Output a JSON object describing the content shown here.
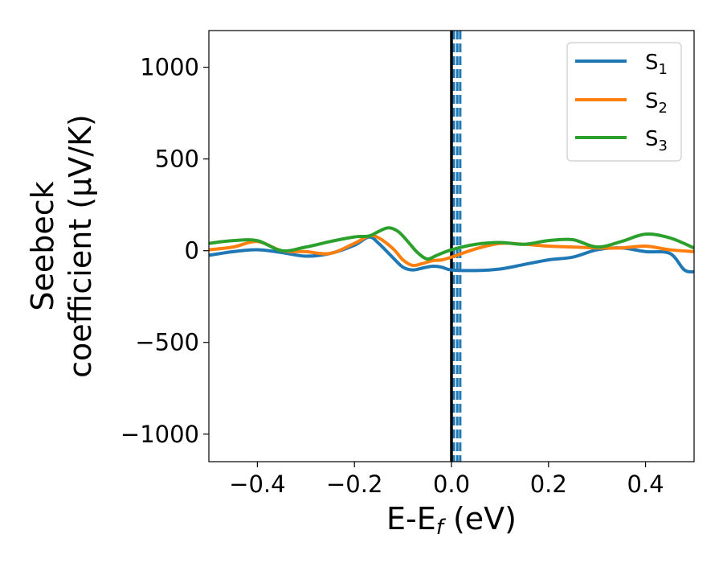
{
  "chart_data": {
    "type": "line",
    "xlabel_main": "E-E",
    "xlabel_sub": "f",
    "xlabel_unit": " (eV)",
    "ylabel_line1": "Seebeck",
    "ylabel_line2": "coefficient  (μV/K)",
    "xlim": [
      -0.5,
      0.5
    ],
    "ylim": [
      -1150,
      1200
    ],
    "xticks": [
      -0.4,
      -0.2,
      0.0,
      0.2,
      0.4
    ],
    "xtick_labels": [
      "−0.4",
      "−0.2",
      "0.0",
      "0.2",
      "0.4"
    ],
    "yticks": [
      -1000,
      -500,
      0,
      500,
      1000
    ],
    "ytick_labels": [
      "−1000",
      "−500",
      "0",
      "500",
      "1000"
    ],
    "grid": false,
    "legend_position": "top-right",
    "fermi_line": {
      "x": 0.0,
      "color": "#000000"
    },
    "dashed_lines": {
      "x": [
        0.005,
        0.012,
        0.018
      ],
      "color": "#1f77b4"
    },
    "series": [
      {
        "name": "S",
        "subscript": "1",
        "color": "#1f77b4",
        "x": [
          -0.5,
          -0.45,
          -0.4,
          -0.35,
          -0.3,
          -0.25,
          -0.2,
          -0.17,
          -0.15,
          -0.12,
          -0.1,
          -0.08,
          -0.06,
          -0.04,
          -0.02,
          0.0,
          0.05,
          0.1,
          0.15,
          0.2,
          0.25,
          0.3,
          0.35,
          0.4,
          0.45,
          0.48,
          0.5
        ],
        "y": [
          -25,
          -5,
          5,
          -10,
          -30,
          -15,
          30,
          75,
          40,
          -40,
          -90,
          -105,
          -95,
          -85,
          -90,
          -105,
          -108,
          -100,
          -75,
          -50,
          -35,
          5,
          15,
          -5,
          -15,
          -105,
          -115
        ]
      },
      {
        "name": "S",
        "subscript": "2",
        "color": "#ff7f0e",
        "x": [
          -0.5,
          -0.45,
          -0.4,
          -0.35,
          -0.3,
          -0.25,
          -0.2,
          -0.17,
          -0.15,
          -0.12,
          -0.1,
          -0.08,
          -0.06,
          -0.04,
          -0.02,
          0.0,
          0.05,
          0.1,
          0.15,
          0.2,
          0.25,
          0.3,
          0.35,
          0.4,
          0.45,
          0.5
        ],
        "y": [
          5,
          20,
          50,
          0,
          -5,
          -15,
          40,
          80,
          70,
          10,
          -50,
          -80,
          -70,
          -55,
          -50,
          -35,
          10,
          40,
          35,
          25,
          20,
          15,
          15,
          25,
          5,
          -5
        ]
      },
      {
        "name": "S",
        "subscript": "3",
        "color": "#2ca02c",
        "x": [
          -0.5,
          -0.45,
          -0.4,
          -0.35,
          -0.3,
          -0.25,
          -0.2,
          -0.17,
          -0.15,
          -0.13,
          -0.11,
          -0.09,
          -0.07,
          -0.05,
          -0.03,
          0.0,
          0.05,
          0.1,
          0.15,
          0.2,
          0.25,
          0.3,
          0.35,
          0.4,
          0.45,
          0.5
        ],
        "y": [
          40,
          55,
          55,
          0,
          20,
          50,
          75,
          80,
          105,
          125,
          105,
          50,
          -10,
          -45,
          -25,
          5,
          35,
          45,
          35,
          55,
          60,
          20,
          50,
          90,
          70,
          15
        ]
      }
    ]
  }
}
